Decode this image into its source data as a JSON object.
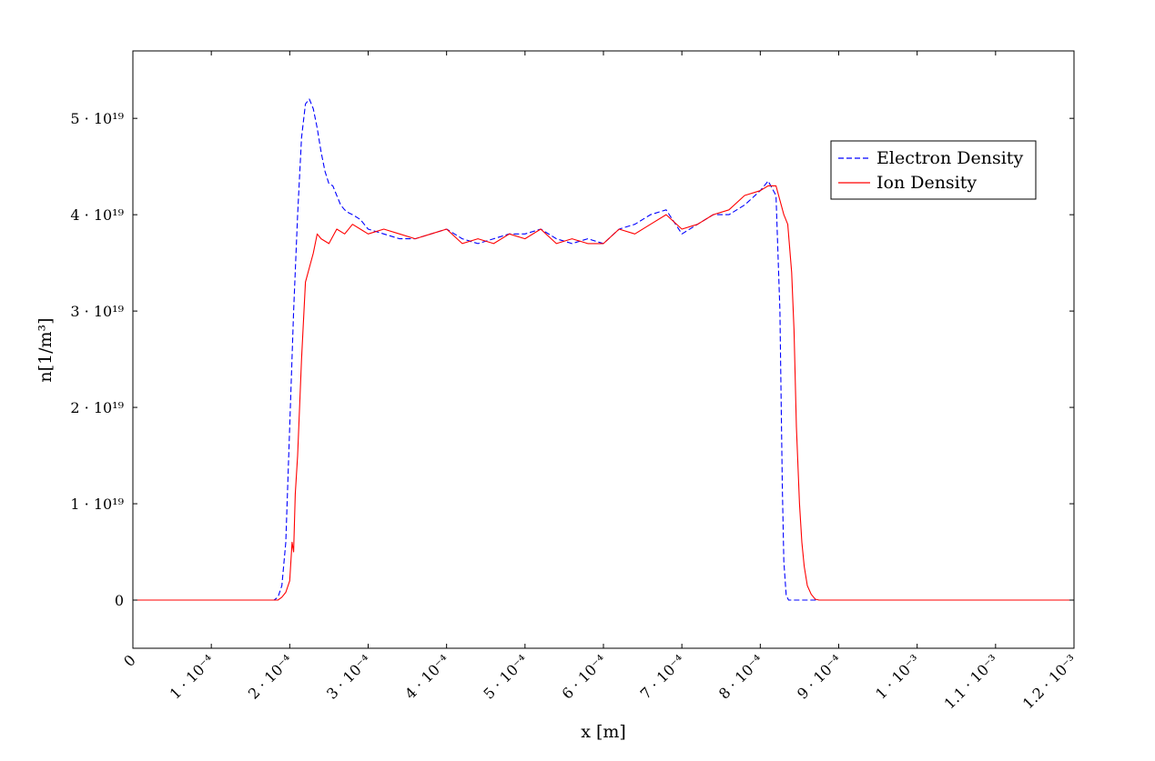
{
  "chart_data": {
    "type": "line",
    "title": "",
    "xlabel": "x [m]",
    "ylabel": "n[1/m³]",
    "xlim": [
      0,
      0.0012
    ],
    "ylim": [
      -5e+18,
      5.7e+19
    ],
    "grid": false,
    "legend_position": "top-right",
    "x_ticks": [
      {
        "value": 0,
        "label": "0"
      },
      {
        "value": 0.0001,
        "label": "1 · 10⁻⁴"
      },
      {
        "value": 0.0002,
        "label": "2 · 10⁻⁴"
      },
      {
        "value": 0.0003,
        "label": "3 · 10⁻⁴"
      },
      {
        "value": 0.0004,
        "label": "4 · 10⁻⁴"
      },
      {
        "value": 0.0005,
        "label": "5 · 10⁻⁴"
      },
      {
        "value": 0.0006,
        "label": "6 · 10⁻⁴"
      },
      {
        "value": 0.0007,
        "label": "7 · 10⁻⁴"
      },
      {
        "value": 0.0008,
        "label": "8 · 10⁻⁴"
      },
      {
        "value": 0.0009,
        "label": "9 · 10⁻⁴"
      },
      {
        "value": 0.001,
        "label": "1 · 10⁻³"
      },
      {
        "value": 0.0011,
        "label": "1.1 · 10⁻³"
      },
      {
        "value": 0.0012,
        "label": "1.2 · 10⁻³"
      }
    ],
    "y_ticks": [
      {
        "value": 0,
        "label": "0"
      },
      {
        "value": 1e+19,
        "label": "1 · 10¹⁹"
      },
      {
        "value": 2e+19,
        "label": "2 · 10¹⁹"
      },
      {
        "value": 3e+19,
        "label": "3 · 10¹⁹"
      },
      {
        "value": 4e+19,
        "label": "4 · 10¹⁹"
      },
      {
        "value": 5e+19,
        "label": "5 · 10¹⁹"
      }
    ],
    "series": [
      {
        "name": "Electron Density",
        "color": "#0000ff",
        "style": "dashed",
        "x": [
          0,
          0.00018,
          0.000185,
          0.00019,
          0.000195,
          0.0002,
          0.000205,
          0.00021,
          0.000215,
          0.00022,
          0.000225,
          0.00023,
          0.000235,
          0.00024,
          0.000245,
          0.00025,
          0.000255,
          0.00026,
          0.000265,
          0.00027,
          0.000275,
          0.00028,
          0.00029,
          0.0003,
          0.00032,
          0.00034,
          0.00036,
          0.00038,
          0.0004,
          0.00042,
          0.00044,
          0.00046,
          0.00048,
          0.0005,
          0.00052,
          0.00054,
          0.00056,
          0.00058,
          0.0006,
          0.00062,
          0.00064,
          0.00066,
          0.00068,
          0.0007,
          0.00072,
          0.00074,
          0.00076,
          0.00078,
          0.0008,
          0.00081,
          0.00082,
          0.000825,
          0.000828,
          0.00083,
          0.000833,
          0.000836,
          0.00084,
          0.0012
        ],
        "y": [
          0,
          0,
          3e+17,
          1.5e+18,
          6e+18,
          1.8e+19,
          3e+19,
          4e+19,
          4.8e+19,
          5.15e+19,
          5.2e+19,
          5.1e+19,
          4.9e+19,
          4.65e+19,
          4.45e+19,
          4.32e+19,
          4.3e+19,
          4.2e+19,
          4.1e+19,
          4.05e+19,
          4.02e+19,
          4e+19,
          3.95e+19,
          3.85e+19,
          3.8e+19,
          3.75e+19,
          3.75e+19,
          3.8e+19,
          3.85e+19,
          3.75e+19,
          3.7e+19,
          3.75e+19,
          3.8e+19,
          3.8e+19,
          3.85e+19,
          3.75e+19,
          3.7e+19,
          3.75e+19,
          3.7e+19,
          3.85e+19,
          3.9e+19,
          4e+19,
          4.05e+19,
          3.8e+19,
          3.9e+19,
          4e+19,
          4e+19,
          4.1e+19,
          4.25e+19,
          4.35e+19,
          4.2e+19,
          3e+19,
          1.2e+19,
          4e+18,
          5e+17,
          0,
          0,
          0
        ]
      },
      {
        "name": "Ion Density",
        "color": "#ff0000",
        "style": "solid",
        "x": [
          0,
          0.000185,
          0.00019,
          0.000195,
          0.0002,
          0.000203,
          0.000205,
          0.000207,
          0.00021,
          0.000215,
          0.00022,
          0.000225,
          0.00023,
          0.000235,
          0.00024,
          0.00025,
          0.00026,
          0.00027,
          0.00028,
          0.00029,
          0.0003,
          0.00032,
          0.00034,
          0.00036,
          0.00038,
          0.0004,
          0.00042,
          0.00044,
          0.00046,
          0.00048,
          0.0005,
          0.00052,
          0.00054,
          0.00056,
          0.00058,
          0.0006,
          0.00062,
          0.00064,
          0.00066,
          0.00068,
          0.0007,
          0.00072,
          0.00074,
          0.00076,
          0.00078,
          0.0008,
          0.00081,
          0.00082,
          0.00083,
          0.000835,
          0.00084,
          0.000843,
          0.000846,
          0.00085,
          0.000853,
          0.000856,
          0.00086,
          0.000865,
          0.00087,
          0.000875,
          0.0012
        ],
        "y": [
          0,
          0,
          3e+17,
          8e+17,
          2e+18,
          6e+18,
          5e+18,
          1.1e+19,
          1.5e+19,
          2.5e+19,
          3.3e+19,
          3.45e+19,
          3.6e+19,
          3.8e+19,
          3.75e+19,
          3.7e+19,
          3.85e+19,
          3.8e+19,
          3.9e+19,
          3.85e+19,
          3.8e+19,
          3.85e+19,
          3.8e+19,
          3.75e+19,
          3.8e+19,
          3.85e+19,
          3.7e+19,
          3.75e+19,
          3.7e+19,
          3.8e+19,
          3.75e+19,
          3.85e+19,
          3.7e+19,
          3.75e+19,
          3.7e+19,
          3.7e+19,
          3.85e+19,
          3.8e+19,
          3.9e+19,
          4e+19,
          3.85e+19,
          3.9e+19,
          4e+19,
          4.05e+19,
          4.2e+19,
          4.25e+19,
          4.3e+19,
          4.3e+19,
          4e+19,
          3.9e+19,
          3.4e+19,
          2.8e+19,
          1.8e+19,
          1e+19,
          6e+18,
          3.5e+18,
          1.5e+18,
          6e+17,
          1e+17,
          0,
          0
        ]
      }
    ]
  }
}
